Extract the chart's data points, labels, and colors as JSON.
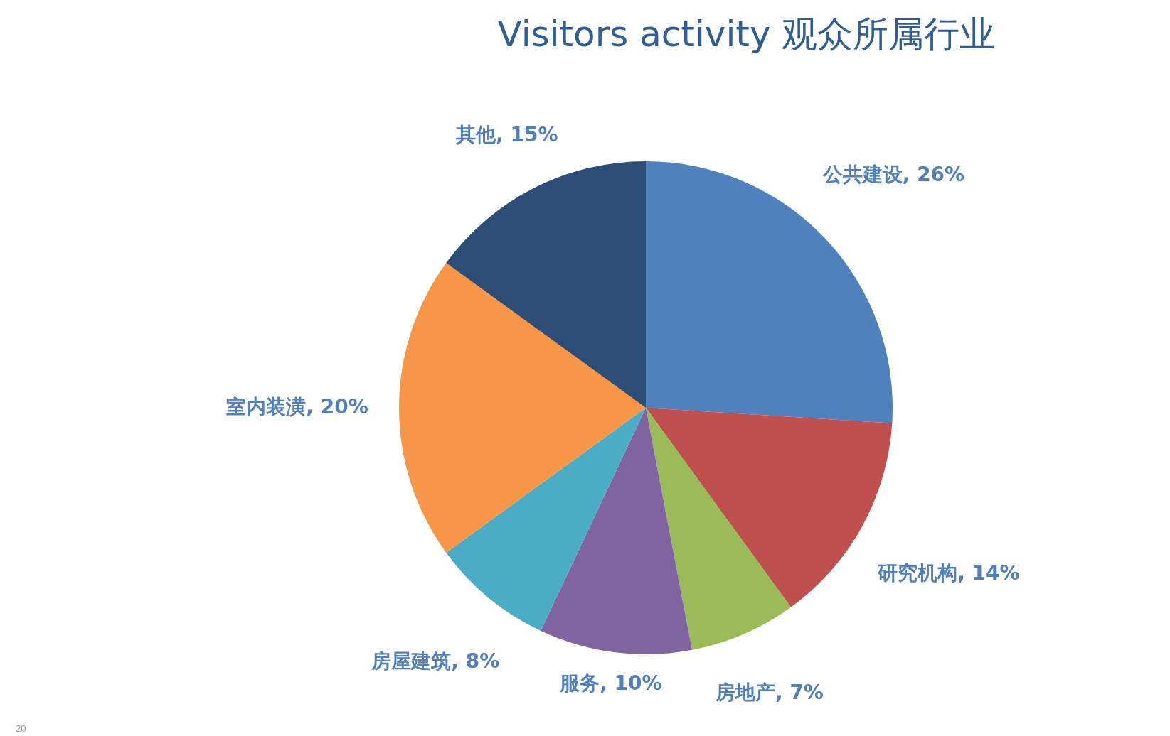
{
  "chart_data": {
    "type": "pie",
    "title": "Visitors activity 观众所属行业",
    "categories": [
      "公共建设",
      "研究机构",
      "房地产",
      "服务",
      "房屋建筑",
      "室内装潢",
      "其他"
    ],
    "values": [
      26,
      14,
      7,
      10,
      8,
      20,
      15
    ],
    "value_labels": [
      "26%",
      "14%",
      "7%",
      "10%",
      "8%",
      "20%",
      "15%"
    ],
    "colors": [
      "#4f81bd",
      "#c0504d",
      "#9bbb59",
      "#8064a2",
      "#4bacc6",
      "#f79646",
      "#2c4d75"
    ],
    "legend": false,
    "annotations": [
      "20"
    ]
  }
}
